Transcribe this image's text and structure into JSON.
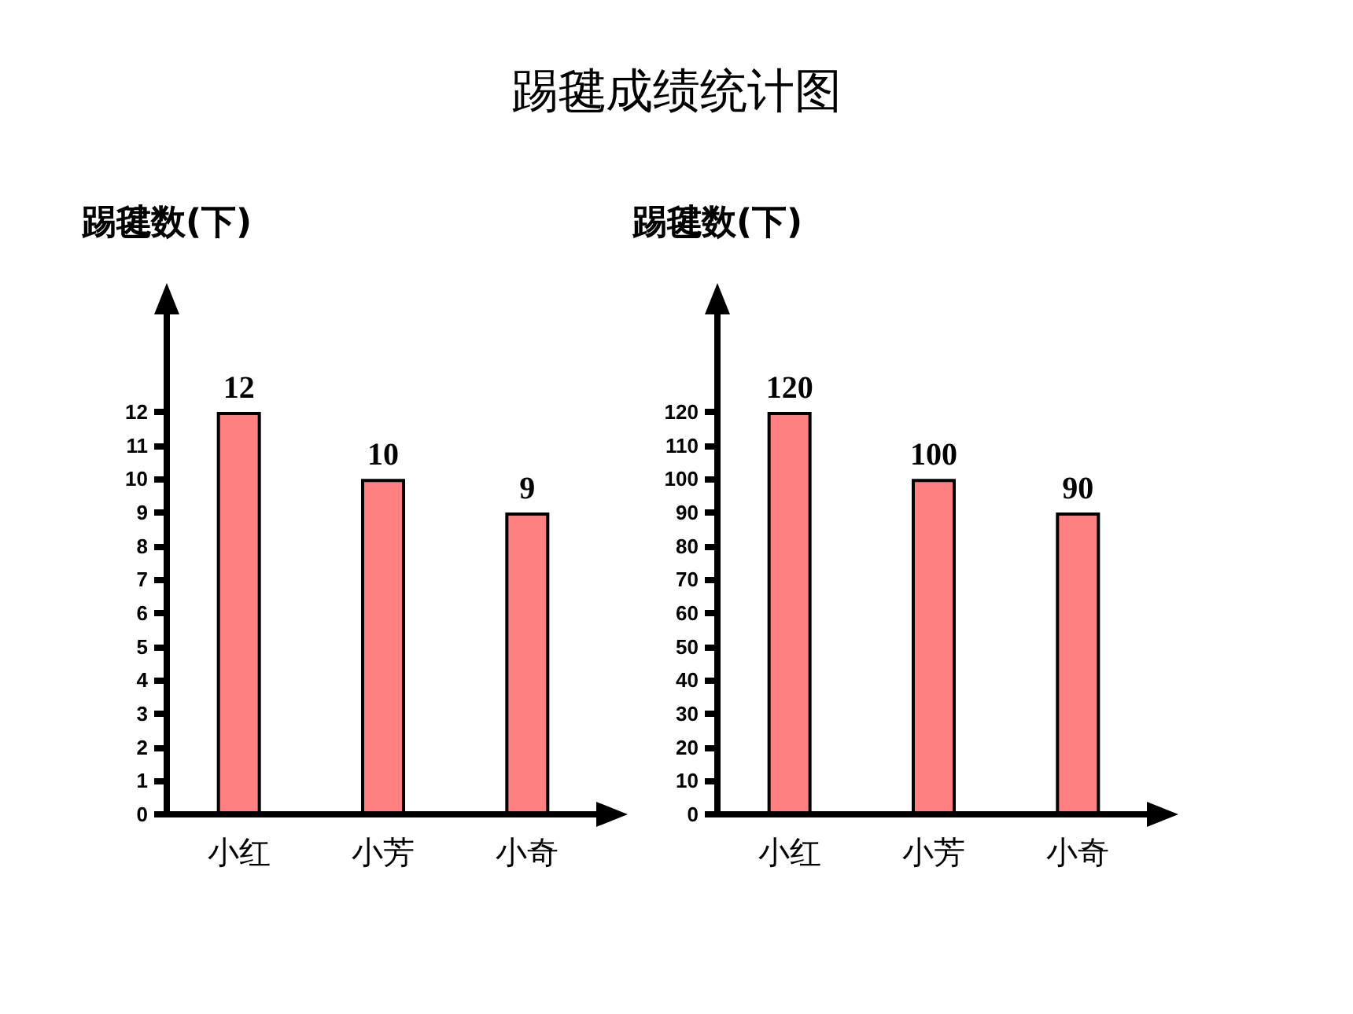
{
  "chart_data": [
    {
      "type": "bar",
      "title": "踢毽成绩统计图",
      "ylabel": "踢毽数(下)",
      "categories": [
        "小红",
        "小芳",
        "小奇"
      ],
      "values": [
        12,
        10,
        9
      ],
      "color": "#ff8080",
      "ylim": [
        0,
        15
      ],
      "yticks": [
        0,
        1,
        2,
        3,
        4,
        5,
        6,
        7,
        8,
        9,
        10,
        11,
        12
      ],
      "data_labels": true,
      "grid": false
    },
    {
      "type": "bar",
      "ylabel": "踢毽数(下)",
      "categories": [
        "小红",
        "小芳",
        "小奇"
      ],
      "values": [
        120,
        100,
        90
      ],
      "color": "#ff8080",
      "ylim": [
        0,
        150
      ],
      "yticks": [
        0,
        10,
        20,
        30,
        40,
        50,
        60,
        70,
        80,
        90,
        100,
        110,
        120
      ],
      "data_labels": true,
      "grid": false
    }
  ]
}
